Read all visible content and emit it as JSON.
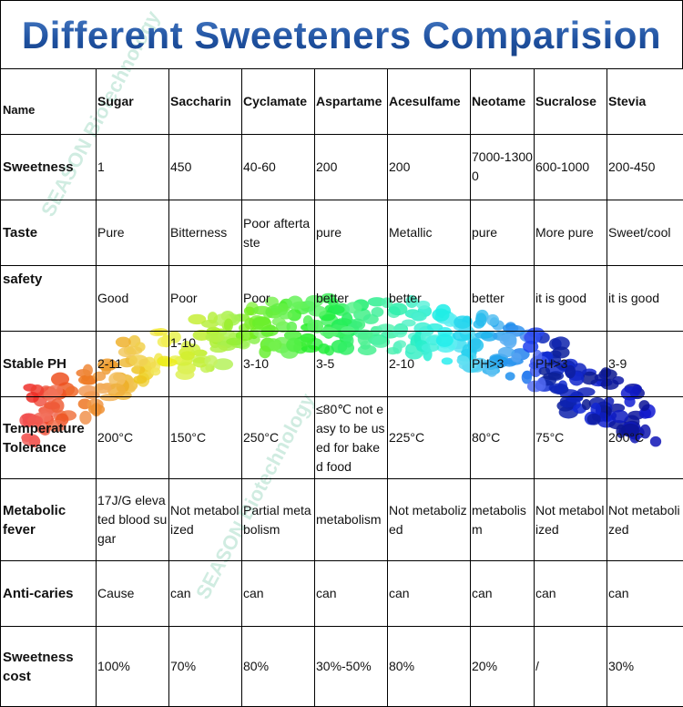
{
  "title": "Different Sweeteners Comparision",
  "watermark": "SEASON Biotechnology",
  "table": {
    "header": [
      "Name",
      "Sugar",
      "Saccharin",
      "Cyclamate",
      "Aspartame",
      "Acesulfame",
      "Neotame",
      "Sucralose",
      "Stevia"
    ],
    "rows": [
      [
        "Sweetness",
        "1",
        "450",
        "40-60",
        "200",
        "200",
        "7000-13000",
        "600-1000",
        "200-450"
      ],
      [
        "Taste",
        "Pure",
        "Bitterness",
        "Poor aftertaste",
        "pure",
        "Metallic",
        "pure",
        "More pure",
        "Sweet/cool"
      ],
      [
        "safety",
        "Good",
        "Poor",
        "Poor",
        "better",
        "better",
        "better",
        "it is good",
        "it is good"
      ],
      [
        "Stable PH",
        "2-11",
        "1-10",
        "3-10",
        "3-5",
        "2-10",
        "PH>3",
        "PH>3",
        "3-9"
      ],
      [
        "Temperature Tolerance",
        "200°C",
        "150°C",
        "250°C",
        "≤80℃ not easy to be used for baked food",
        "225°C",
        "80°C",
        "75°C",
        "200°C"
      ],
      [
        "Metabolic fever",
        "17J/G elevated blood sugar",
        "Not metabolized",
        "Partial metabolism",
        "metabolism",
        "Not metabolized",
        "metabolism",
        "Not metabolized",
        "Not metabolized"
      ],
      [
        "Anti-caries",
        "Cause",
        "can",
        "can",
        "can",
        "can",
        "can",
        "can",
        "can"
      ],
      [
        "Sweetness cost",
        "100%",
        "70%",
        "80%",
        "30%-50%",
        "80%",
        "20%",
        "/",
        "30%"
      ]
    ]
  }
}
